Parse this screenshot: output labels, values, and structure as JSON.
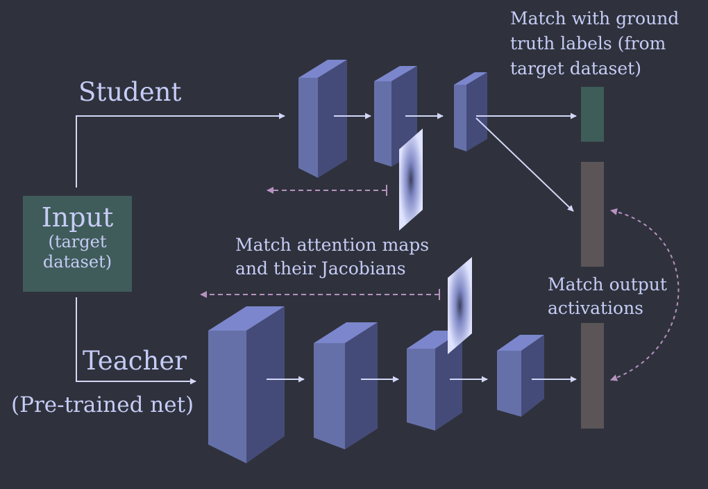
{
  "colors": {
    "background": "#2f323c",
    "text": "#c6ccf6",
    "arrow": "#d4d8f8",
    "dashed_arrow": "#b792c2",
    "block_front": "#6670a8",
    "block_side": "#454b78",
    "block_top": "#7b86cc",
    "input_box": "#3f5c5a",
    "label_bar": "#3e5c58",
    "activation_bar": "#5b5558"
  },
  "labels": {
    "student": "Student",
    "teacher": "Teacher",
    "pretrained": "(Pre-trained net)",
    "input_title": "Input",
    "input_sub1": "(target",
    "input_sub2": "dataset)",
    "ground_truth_line1": "Match with ground",
    "ground_truth_line2": "truth labels (from",
    "ground_truth_line3": "target dataset)",
    "attention_line1": "Match attention maps",
    "attention_line2": "and their Jacobians",
    "output_line1": "Match output",
    "output_line2": "activations"
  }
}
